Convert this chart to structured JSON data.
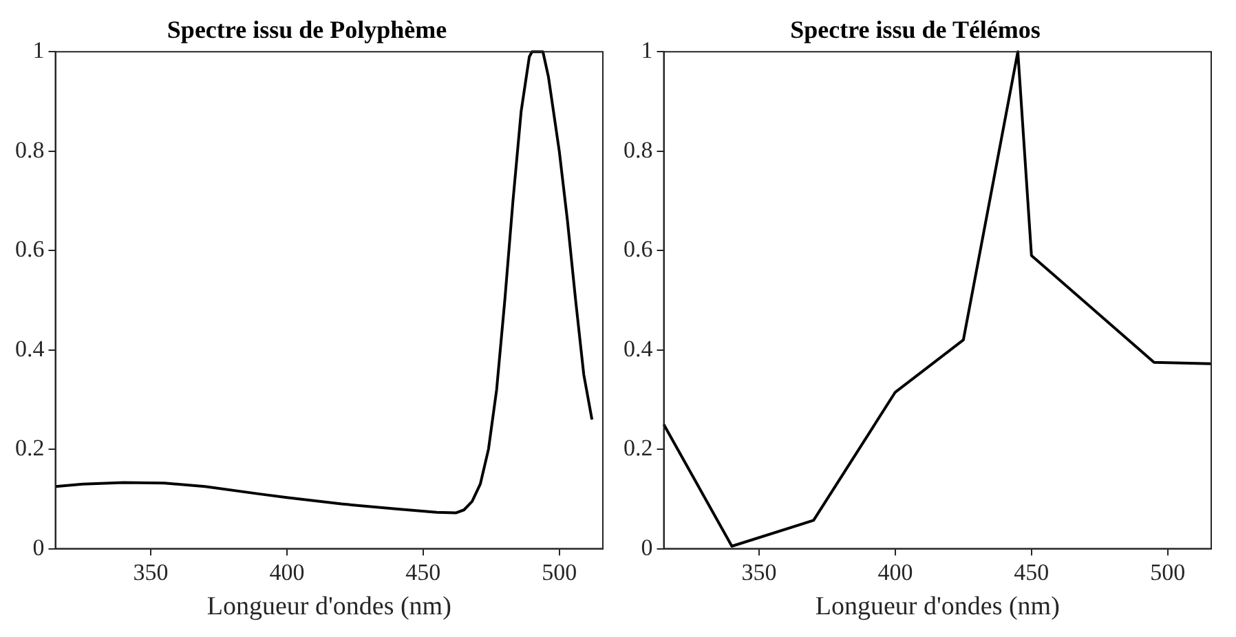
{
  "chart_data": [
    {
      "type": "line",
      "title": "Spectre issu de Polyphème",
      "xlabel": "Longueur d'ondes (nm)",
      "x": [
        315,
        325,
        340,
        355,
        370,
        390,
        400,
        420,
        440,
        455,
        462,
        465,
        468,
        471,
        474,
        477,
        480,
        483,
        486,
        489,
        490,
        494,
        496,
        500,
        503,
        506,
        509,
        512
      ],
      "values": [
        0.125,
        0.13,
        0.133,
        0.132,
        0.125,
        0.11,
        0.103,
        0.09,
        0.08,
        0.073,
        0.072,
        0.078,
        0.095,
        0.13,
        0.2,
        0.32,
        0.5,
        0.7,
        0.88,
        0.99,
        1.0,
        1.0,
        0.95,
        0.8,
        0.66,
        0.5,
        0.35,
        0.26
      ],
      "color": "#000000",
      "xlim": [
        315,
        516
      ],
      "ylim": [
        0,
        1
      ],
      "xticks": [
        350,
        400,
        450,
        500
      ],
      "yticks": [
        0,
        0.2,
        0.4,
        0.6,
        0.8,
        1
      ],
      "grid": false,
      "marker": "none",
      "line_style": "solid"
    },
    {
      "type": "line",
      "title": "Spectre issu de Télémos",
      "xlabel": "Longueur d'ondes (nm)",
      "x": [
        315,
        340,
        370,
        400,
        425,
        445,
        450,
        495,
        516
      ],
      "values": [
        0.25,
        0.005,
        0.057,
        0.315,
        0.42,
        1.0,
        0.59,
        0.375,
        0.372
      ],
      "color": "#000000",
      "xlim": [
        315,
        516
      ],
      "ylim": [
        0,
        1
      ],
      "xticks": [
        350,
        400,
        450,
        500
      ],
      "yticks": [
        0,
        0.2,
        0.4,
        0.6,
        0.8,
        1
      ],
      "grid": false,
      "marker": "none",
      "line_style": "solid"
    }
  ]
}
